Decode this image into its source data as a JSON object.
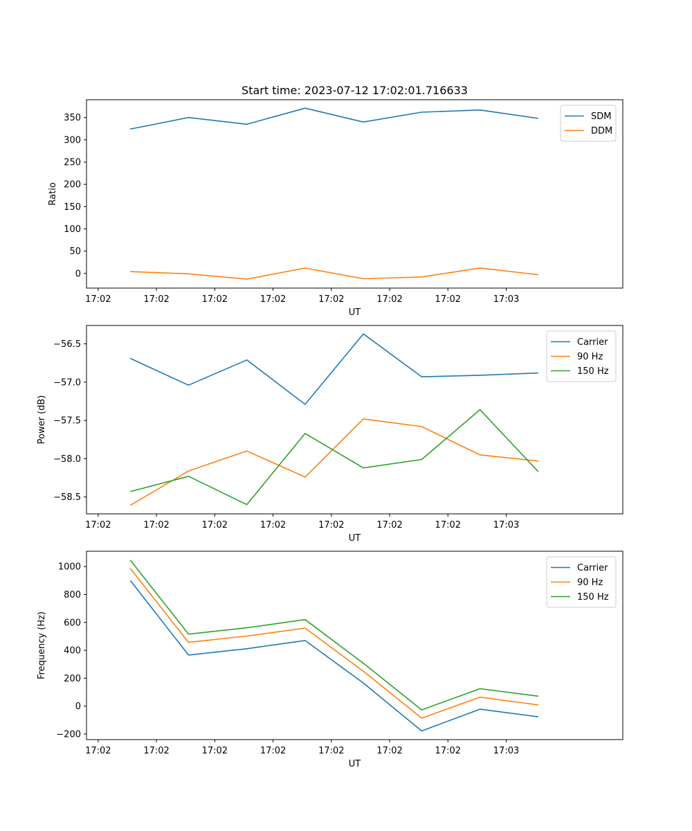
{
  "chart_data": [
    {
      "type": "line",
      "title": "Start time: 2023-07-12 17:02:01.716633",
      "xlabel": "UT",
      "ylabel": "Ratio",
      "x_tick_labels": [
        "17:02",
        "17:02",
        "17:02",
        "17:02",
        "17:02",
        "17:02",
        "17:02"
      ],
      "x_last_tick_label": "17:03",
      "xlim": [
        0,
        9.2
      ],
      "ylim": [
        -33,
        390
      ],
      "y_ticks": [
        0,
        50,
        100,
        150,
        200,
        250,
        300,
        350
      ],
      "grid": false,
      "legend": "top-right",
      "x": [
        0.75,
        1.75,
        2.75,
        3.75,
        4.75,
        5.75,
        6.75,
        7.75
      ],
      "series": [
        {
          "name": "SDM",
          "color": "#1f77b4",
          "values": [
            324,
            350,
            335,
            371,
            340,
            362,
            367,
            348
          ]
        },
        {
          "name": "DDM",
          "color": "#ff7f0e",
          "values": [
            4,
            -1,
            -13,
            12,
            -12,
            -8,
            12,
            -3
          ]
        }
      ]
    },
    {
      "type": "line",
      "title": "",
      "xlabel": "UT",
      "ylabel": "Power (dB)",
      "x_tick_labels": [
        "17:02",
        "17:02",
        "17:02",
        "17:02",
        "17:02",
        "17:02",
        "17:02"
      ],
      "x_last_tick_label": "17:03",
      "xlim": [
        0,
        9.2
      ],
      "ylim": [
        -58.72,
        -56.26
      ],
      "y_ticks": [
        -58.5,
        -58.0,
        -57.5,
        -57.0,
        -56.5
      ],
      "y_tick_labels": [
        "−58.5",
        "−58.0",
        "−57.5",
        "−57.0",
        "−56.5"
      ],
      "grid": false,
      "legend": "top-right",
      "x": [
        0.75,
        1.75,
        2.75,
        3.75,
        4.75,
        5.75,
        6.75,
        7.75
      ],
      "series": [
        {
          "name": "Carrier",
          "color": "#1f77b4",
          "values": [
            -56.69,
            -57.04,
            -56.71,
            -57.29,
            -56.37,
            -56.93,
            -56.91,
            -56.88
          ]
        },
        {
          "name": "90 Hz",
          "color": "#ff7f0e",
          "values": [
            -58.61,
            -58.16,
            -57.9,
            -58.24,
            -57.48,
            -57.58,
            -57.95,
            -58.03
          ]
        },
        {
          "name": "150 Hz",
          "color": "#2ca02c",
          "values": [
            -58.43,
            -58.23,
            -58.6,
            -57.67,
            -58.12,
            -58.01,
            -57.36,
            -58.17
          ]
        }
      ]
    },
    {
      "type": "line",
      "title": "",
      "xlabel": "UT",
      "ylabel": "Frequency (Hz)",
      "x_tick_labels": [
        "17:02",
        "17:02",
        "17:02",
        "17:02",
        "17:02",
        "17:02",
        "17:02"
      ],
      "x_last_tick_label": "17:03",
      "xlim": [
        0,
        9.2
      ],
      "ylim": [
        -240,
        1110
      ],
      "y_ticks": [
        -200,
        0,
        200,
        400,
        600,
        800,
        1000
      ],
      "y_tick_labels": [
        "−200",
        "0",
        "200",
        "400",
        "600",
        "800",
        "1000"
      ],
      "grid": false,
      "legend": "top-right",
      "x": [
        0.75,
        1.75,
        2.75,
        3.75,
        4.75,
        5.75,
        6.75,
        7.75
      ],
      "series": [
        {
          "name": "Carrier",
          "color": "#1f77b4",
          "values": [
            901,
            366,
            411,
            470,
            165,
            -178,
            -22,
            -77
          ]
        },
        {
          "name": "90 Hz",
          "color": "#ff7f0e",
          "values": [
            988,
            457,
            502,
            559,
            250,
            -86,
            64,
            8
          ]
        },
        {
          "name": "150 Hz",
          "color": "#2ca02c",
          "values": [
            1047,
            516,
            561,
            620,
            307,
            -27,
            125,
            71
          ]
        }
      ]
    }
  ]
}
